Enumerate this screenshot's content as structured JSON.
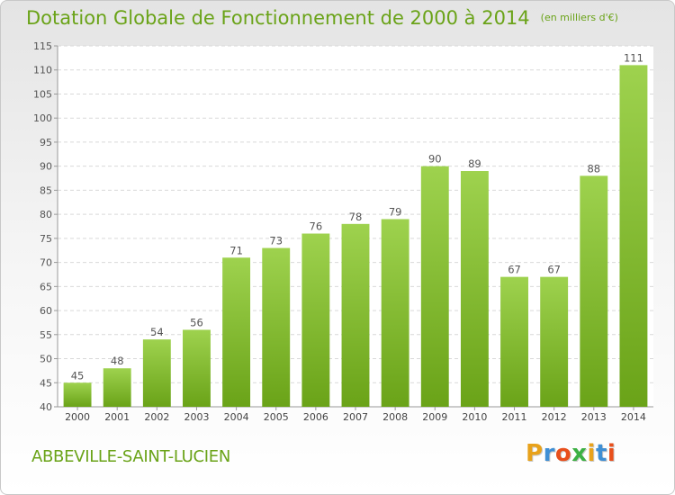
{
  "header": {
    "title": "Dotation Globale de Fonctionnement de 2000 à 2014",
    "unit": "(en milliers d'€)"
  },
  "footer": {
    "commune": "ABBEVILLE-SAINT-LUCIEN",
    "logo_letters": [
      "P",
      "r",
      "o",
      "x",
      "i",
      "t",
      "i"
    ],
    "logo_colors": [
      "#e8a21b",
      "#3f8fd4",
      "#e84f1c",
      "#3cb043",
      "#e8a21b",
      "#3f8fd4",
      "#e84f1c"
    ]
  },
  "chart_data": {
    "type": "bar",
    "categories": [
      "2000",
      "2001",
      "2002",
      "2003",
      "2004",
      "2005",
      "2006",
      "2007",
      "2008",
      "2009",
      "2010",
      "2011",
      "2012",
      "2013",
      "2014"
    ],
    "values": [
      45,
      48,
      54,
      56,
      71,
      73,
      76,
      78,
      79,
      90,
      89,
      67,
      67,
      88,
      111
    ],
    "ylim": [
      40,
      115
    ],
    "yticks": [
      40,
      45,
      50,
      55,
      60,
      65,
      70,
      75,
      80,
      85,
      90,
      95,
      100,
      105,
      110,
      115
    ],
    "bar_color": "#8dc63f",
    "bar_color_dark": "#6aa318",
    "grid": "horizontal dashed"
  }
}
